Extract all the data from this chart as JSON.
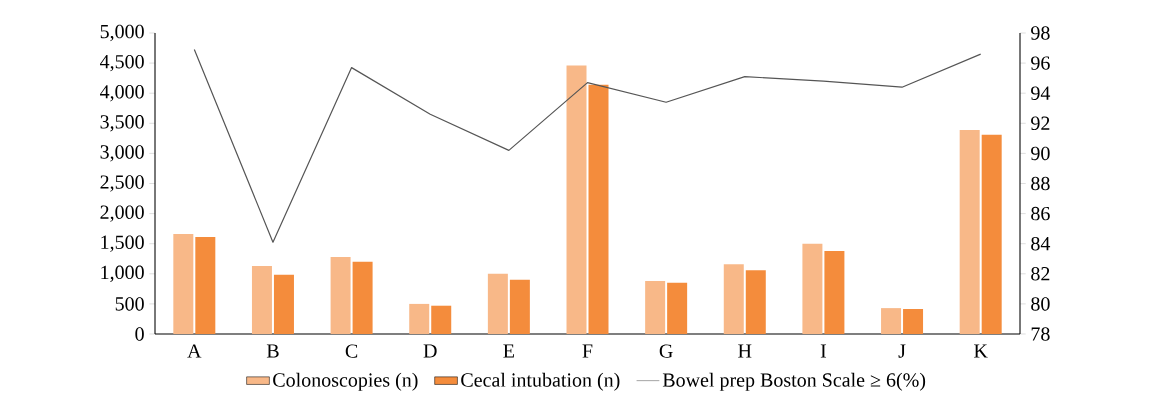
{
  "chart_data": {
    "type": "bar",
    "categories": [
      "A",
      "B",
      "C",
      "D",
      "E",
      "F",
      "G",
      "H",
      "I",
      "J",
      "K"
    ],
    "series": [
      {
        "name": "Colonoscopies (n)",
        "color": "#f8b888",
        "values": [
          1660,
          1130,
          1280,
          500,
          1000,
          4460,
          880,
          1160,
          1500,
          430,
          3390
        ]
      },
      {
        "name": "Cecal intubation (n)",
        "color": "#f48c3c",
        "values": [
          1610,
          985,
          1200,
          470,
          900,
          4140,
          850,
          1060,
          1380,
          415,
          3310
        ]
      },
      {
        "name": "Bowel prep Boston Scale ≥ 6(%)",
        "type": "line",
        "axis": "y2",
        "color": "#555555",
        "values": [
          96.9,
          84.1,
          95.7,
          92.6,
          90.2,
          94.7,
          93.4,
          95.1,
          94.8,
          94.4,
          96.6
        ]
      }
    ],
    "ylim": [
      0,
      5000
    ],
    "yticks": [
      0,
      500,
      {
        "value": 1000,
        "label": "1,000"
      },
      {
        "value": 1500,
        "label": "1,500"
      },
      {
        "value": 2000,
        "label": "2,000"
      },
      {
        "value": 2500,
        "label": "2,500"
      },
      {
        "value": 3000,
        "label": "3,000"
      },
      {
        "value": 3500,
        "label": "3,500"
      },
      {
        "value": 4000,
        "label": "4,000"
      },
      {
        "value": 4500,
        "label": "4,500"
      },
      {
        "value": 5000,
        "label": "5,000"
      }
    ],
    "y2lim": [
      78,
      98
    ],
    "y2ticks": [
      78,
      80,
      82,
      84,
      86,
      88,
      90,
      92,
      94,
      96,
      98
    ],
    "legend": "bottom",
    "grid": false,
    "marker": "none"
  }
}
